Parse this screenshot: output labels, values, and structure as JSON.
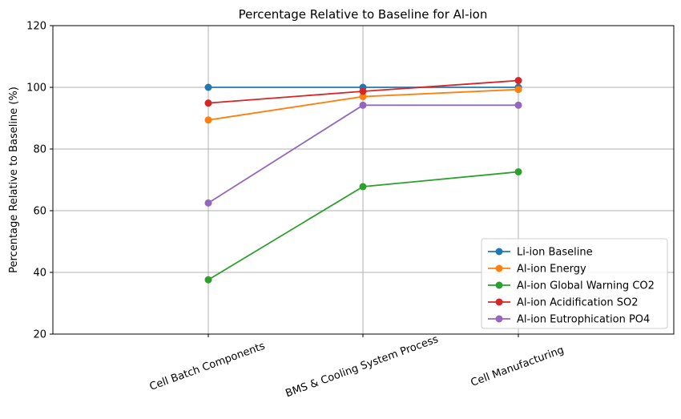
{
  "chart_data": {
    "type": "line",
    "title": "Percentage Relative to Baseline for Al-ion",
    "xlabel": "",
    "ylabel": "Percentage Relative to Baseline (%)",
    "categories": [
      "Cell Batch Components",
      "BMS & Cooling System Process",
      "Cell Manufacturing"
    ],
    "ylim": [
      20,
      120
    ],
    "yticks": [
      20,
      40,
      60,
      80,
      100,
      120
    ],
    "grid": true,
    "legend_position": "lower-right",
    "series": [
      {
        "name": "Li-ion Baseline",
        "color": "#1f77b4",
        "values": [
          100,
          100,
          100
        ]
      },
      {
        "name": "Al-ion Energy",
        "color": "#ff7f0e",
        "values": [
          89.4,
          97.0,
          99.3
        ]
      },
      {
        "name": "Al-ion Global Warning CO2",
        "color": "#2ca02c",
        "values": [
          37.6,
          67.8,
          72.6
        ]
      },
      {
        "name": "Al-ion Acidification SO2",
        "color": "#d62728",
        "values": [
          94.9,
          98.7,
          102.2
        ]
      },
      {
        "name": "Al-ion Eutrophication PO4",
        "color": "#9467bd",
        "values": [
          62.5,
          94.2,
          94.2
        ]
      }
    ]
  }
}
